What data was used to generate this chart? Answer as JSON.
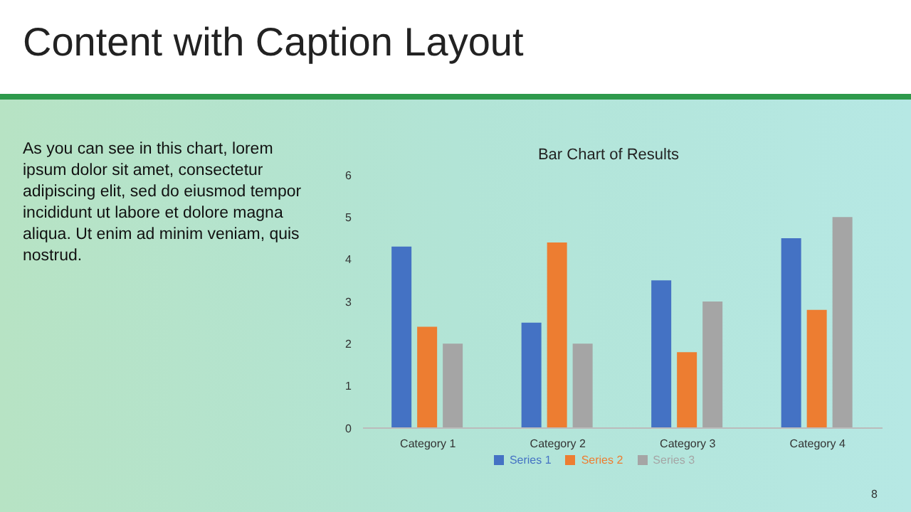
{
  "chart_data": {
    "type": "bar",
    "title": "Content with Caption Layout",
    "subtitle": "Bar Chart of Results",
    "annotations": [
      "As you can see in this chart, lorem ipsum dolor sit amet, consectetur adipiscing elit, sed do eiusmod tempor incididunt ut labore et dolore magna aliqua. Ut enim ad minim veniam, quis nostrud.",
      "8"
    ],
    "categories": [
      "Category 1",
      "Category 2",
      "Category 3",
      "Category 4"
    ],
    "series": [
      {
        "name": "Series 1",
        "color": "#4472c4",
        "values": [
          4.3,
          2.5,
          3.5,
          4.5
        ]
      },
      {
        "name": "Series 2",
        "color": "#ed7d31",
        "values": [
          2.4,
          4.4,
          1.8,
          2.8
        ]
      },
      {
        "name": "Series 3",
        "color": "#a5a5a5",
        "values": [
          2,
          2,
          3,
          5
        ]
      }
    ],
    "ylim": [
      0,
      6
    ],
    "yticks": [
      0,
      1,
      2,
      3,
      4,
      5,
      6
    ],
    "grid": false,
    "legend": "bottom"
  }
}
